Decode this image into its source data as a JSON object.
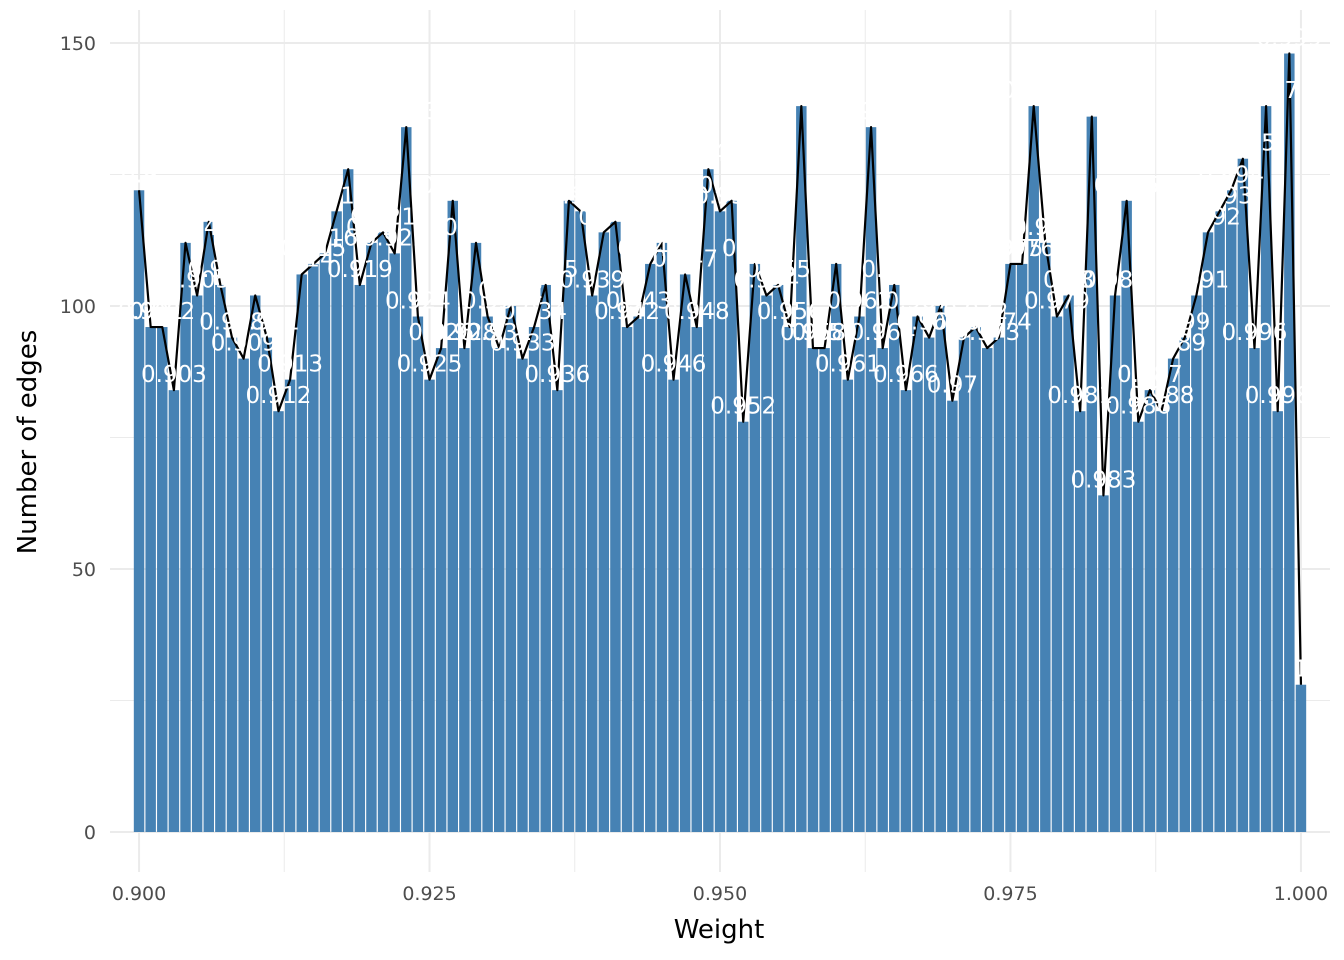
{
  "chart_data": {
    "type": "bar",
    "title": "",
    "xlabel": "Weight",
    "ylabel": "Number of edges",
    "xlim": [
      0.8975,
      1.0025
    ],
    "ylim": [
      0,
      150
    ],
    "x_ticks": [
      "0.900",
      "0.925",
      "0.950",
      "0.975",
      "1.000"
    ],
    "y_ticks": [
      "0",
      "50",
      "100",
      "150"
    ],
    "grid": true,
    "bar_color": "#4682B4",
    "line_color": "#000000",
    "label_color": "#ffffff",
    "x": [
      0.9,
      0.901,
      0.902,
      0.903,
      0.904,
      0.905,
      0.906,
      0.907,
      0.908,
      0.909,
      0.91,
      0.911,
      0.912,
      0.913,
      0.914,
      0.915,
      0.916,
      0.917,
      0.918,
      0.919,
      0.92,
      0.921,
      0.922,
      0.923,
      0.924,
      0.925,
      0.926,
      0.927,
      0.928,
      0.929,
      0.93,
      0.931,
      0.932,
      0.933,
      0.934,
      0.935,
      0.936,
      0.937,
      0.938,
      0.939,
      0.94,
      0.941,
      0.942,
      0.943,
      0.944,
      0.945,
      0.946,
      0.947,
      0.948,
      0.949,
      0.95,
      0.951,
      0.952,
      0.953,
      0.954,
      0.955,
      0.956,
      0.957,
      0.958,
      0.959,
      0.96,
      0.961,
      0.962,
      0.963,
      0.964,
      0.965,
      0.966,
      0.967,
      0.968,
      0.969,
      0.97,
      0.971,
      0.972,
      0.973,
      0.974,
      0.975,
      0.976,
      0.977,
      0.978,
      0.979,
      0.98,
      0.981,
      0.982,
      0.983,
      0.984,
      0.985,
      0.986,
      0.987,
      0.988,
      0.989,
      0.99,
      0.991,
      0.992,
      0.993,
      0.994,
      0.995,
      0.996,
      0.997,
      0.998,
      0.999,
      1.0
    ],
    "values": [
      122,
      96,
      96,
      84,
      112,
      102,
      116,
      104,
      94,
      90,
      102,
      94,
      80,
      86,
      106,
      108,
      110,
      118,
      126,
      104,
      112,
      114,
      110,
      134,
      98,
      86,
      92,
      120,
      92,
      112,
      98,
      92,
      100,
      90,
      96,
      104,
      84,
      120,
      118,
      102,
      114,
      116,
      96,
      98,
      108,
      112,
      86,
      106,
      96,
      126,
      118,
      120,
      78,
      108,
      102,
      104,
      96,
      138,
      92,
      92,
      108,
      86,
      98,
      134,
      92,
      104,
      84,
      98,
      94,
      100,
      82,
      94,
      96,
      92,
      94,
      108,
      108,
      138,
      112,
      98,
      102,
      80,
      136,
      64,
      102,
      120,
      78,
      84,
      80,
      90,
      94,
      102,
      114,
      118,
      122,
      128,
      92,
      138,
      80,
      148,
      28
    ],
    "labels": [
      "0.9",
      "0.901",
      "0.902",
      "0.903",
      "0.904",
      "0.905",
      "0.906",
      "0.907",
      "0.908",
      "0.909",
      "0.91",
      "0.911",
      "0.912",
      "0.913",
      "0.914",
      "0.915",
      "0.916",
      "0.917",
      "0.918",
      "0.919",
      "0.92",
      "0.921",
      "0.922",
      "0.923",
      "0.924",
      "0.925",
      "0.926",
      "0.927",
      "0.928",
      "0.929",
      "0.93",
      "0.931",
      "0.932",
      "0.933",
      "0.934",
      "0.935",
      "0.936",
      "0.937",
      "0.938",
      "0.939",
      "0.94",
      "0.941",
      "0.942",
      "0.943",
      "0.944",
      "0.945",
      "0.946",
      "0.947",
      "0.948",
      "0.949",
      "0.95",
      "0.951",
      "0.952",
      "0.953",
      "0.954",
      "0.955",
      "0.956",
      "0.957",
      "0.958",
      "0.959",
      "0.96",
      "0.961",
      "0.962",
      "0.963",
      "0.964",
      "0.965",
      "0.966",
      "0.967",
      "0.968",
      "0.969",
      "0.97",
      "0.971",
      "0.972",
      "0.973",
      "0.974",
      "0.975",
      "0.976",
      "0.977",
      "0.978",
      "0.979",
      "0.98",
      "0.981",
      "0.982",
      "0.983",
      "0.984",
      "0.985",
      "0.986",
      "0.987",
      "0.988",
      "0.989",
      "0.99",
      "0.991",
      "0.992",
      "0.993",
      "0.994",
      "0.995",
      "0.996",
      "0.997",
      "0.998",
      "0.999",
      "1"
    ]
  }
}
